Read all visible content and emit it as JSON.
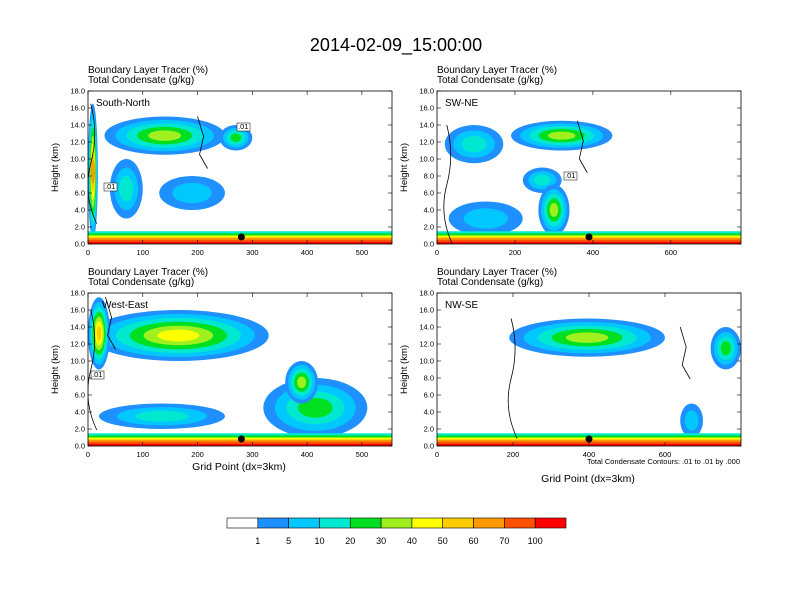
{
  "figure": {
    "title": "2014-02-09_15:00:00",
    "note": "Total Condensate Contours: .01 to .01 by .000",
    "xlabel": "Grid Point (dx=3km)",
    "ylabel": "Height (km)"
  },
  "colorbar": {
    "labels": [
      "1",
      "5",
      "10",
      "20",
      "30",
      "40",
      "50",
      "60",
      "70",
      "100"
    ],
    "colors": [
      "#ffffff",
      "#1e90ff",
      "#00c8ff",
      "#00e8d0",
      "#00e020",
      "#a0f020",
      "#ffff00",
      "#ffcc00",
      "#ff9900",
      "#ff5000",
      "#ff0000"
    ]
  },
  "chart_data": [
    {
      "type": "heatmap",
      "panel_label": "South-North",
      "header_line1": "Boundary Layer Tracer    (%)",
      "header_line2": "Total Condensate   (g/kg)",
      "xlim": [
        0,
        555
      ],
      "ylim": [
        0,
        18
      ],
      "xticks": [
        0,
        100,
        200,
        300,
        400,
        500
      ],
      "yticks": [
        "0.0",
        "2.0",
        "4.0",
        "6.0",
        "8.0",
        "10.0",
        "12.0",
        "14.0",
        "16.0",
        "18.0"
      ],
      "contour_labels": [
        ".01",
        ".01"
      ],
      "marker_x": 280,
      "cloud_regions": [
        {
          "x": [
            0,
            18
          ],
          "y": [
            0.5,
            16.5
          ],
          "value": 60
        },
        {
          "x": [
            30,
            250
          ],
          "y": [
            10.5,
            15
          ],
          "value": 30
        },
        {
          "x": [
            240,
            300
          ],
          "y": [
            11,
            14
          ],
          "value": 20
        },
        {
          "x": [
            40,
            100
          ],
          "y": [
            3,
            10
          ],
          "value": 10
        },
        {
          "x": [
            130,
            250
          ],
          "y": [
            4,
            8
          ],
          "value": 5
        },
        {
          "x": [
            0,
            555
          ],
          "y": [
            0,
            1.5
          ],
          "value": 70
        }
      ]
    },
    {
      "type": "heatmap",
      "panel_label": "SW-NE",
      "header_line1": "Boundary Layer Tracer    (%)",
      "header_line2": "Total Condensate   (g/kg)",
      "xlim": [
        0,
        780
      ],
      "ylim": [
        0,
        18
      ],
      "xticks": [
        0,
        200,
        400,
        600
      ],
      "yticks": [
        "0.0",
        "2.0",
        "4.0",
        "6.0",
        "8.0",
        "10.0",
        "12.0",
        "14.0",
        "16.0",
        "18.0"
      ],
      "contour_labels": [
        ".01"
      ],
      "marker_x": 390,
      "cloud_regions": [
        {
          "x": [
            20,
            170
          ],
          "y": [
            9.5,
            14
          ],
          "value": 10
        },
        {
          "x": [
            190,
            450
          ],
          "y": [
            11,
            14.5
          ],
          "value": 30
        },
        {
          "x": [
            220,
            320
          ],
          "y": [
            6,
            9
          ],
          "value": 10
        },
        {
          "x": [
            260,
            340
          ],
          "y": [
            1,
            7
          ],
          "value": 30
        },
        {
          "x": [
            30,
            220
          ],
          "y": [
            1,
            5
          ],
          "value": 5
        },
        {
          "x": [
            0,
            780
          ],
          "y": [
            0,
            1.5
          ],
          "value": 70
        }
      ]
    },
    {
      "type": "heatmap",
      "panel_label": "West-East",
      "header_line1": "Boundary Layer Tracer    (%)",
      "header_line2": "Total Condensate   (g/kg)",
      "xlim": [
        0,
        555
      ],
      "ylim": [
        0,
        18
      ],
      "xticks": [
        0,
        100,
        200,
        300,
        400,
        500
      ],
      "yticks": [
        "0.0",
        "2.0",
        "4.0",
        "6.0",
        "8.0",
        "10.0",
        "12.0",
        "14.0",
        "16.0",
        "18.0"
      ],
      "contour_labels": [
        ".01"
      ],
      "marker_x": 280,
      "cloud_regions": [
        {
          "x": [
            0,
            330
          ],
          "y": [
            10,
            16
          ],
          "value": 40
        },
        {
          "x": [
            0,
            40
          ],
          "y": [
            9,
            17.5
          ],
          "value": 50
        },
        {
          "x": [
            20,
            250
          ],
          "y": [
            2,
            5
          ],
          "value": 10
        },
        {
          "x": [
            320,
            510
          ],
          "y": [
            1,
            8
          ],
          "value": 20
        },
        {
          "x": [
            360,
            420
          ],
          "y": [
            5,
            10
          ],
          "value": 30
        },
        {
          "x": [
            0,
            555
          ],
          "y": [
            0,
            1.5
          ],
          "value": 70
        }
      ]
    },
    {
      "type": "heatmap",
      "panel_label": "NW-SE",
      "header_line1": "Boundary Layer Tracer    (%)",
      "header_line2": "Total Condensate   (g/kg)",
      "xlim": [
        0,
        800
      ],
      "ylim": [
        0,
        18
      ],
      "xticks": [
        0,
        200,
        400,
        600
      ],
      "yticks": [
        "0.0",
        "2.0",
        "4.0",
        "6.0",
        "8.0",
        "10.0",
        "12.0",
        "14.0",
        "16.0",
        "18.0"
      ],
      "contour_labels": [],
      "marker_x": 400,
      "cloud_regions": [
        {
          "x": [
            190,
            600
          ],
          "y": [
            10.5,
            15
          ],
          "value": 30
        },
        {
          "x": [
            720,
            800
          ],
          "y": [
            9,
            14
          ],
          "value": 20
        },
        {
          "x": [
            640,
            700
          ],
          "y": [
            1,
            5
          ],
          "value": 5
        },
        {
          "x": [
            0,
            800
          ],
          "y": [
            0,
            1.5
          ],
          "value": 70
        }
      ]
    }
  ]
}
